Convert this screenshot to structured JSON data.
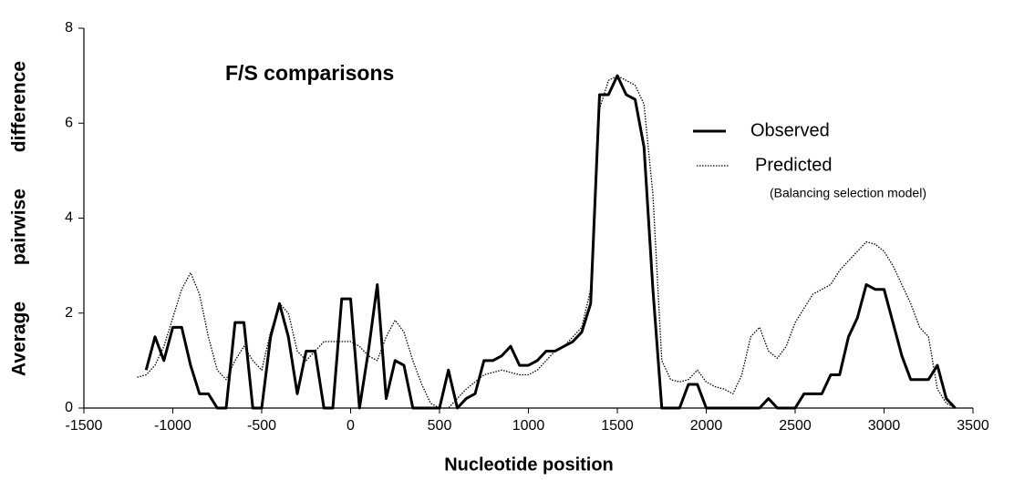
{
  "chart_data": {
    "type": "line",
    "title": "F/S comparisons",
    "x_label": "Nucleotide position",
    "y_label": "Average pairwise difference",
    "annotation": "(Balancing selection model)",
    "x": [
      -1200,
      -1150,
      -1100,
      -1050,
      -1000,
      -950,
      -900,
      -850,
      -800,
      -750,
      -700,
      -650,
      -600,
      -550,
      -500,
      -450,
      -400,
      -350,
      -300,
      -250,
      -200,
      -150,
      -100,
      -50,
      0,
      50,
      100,
      150,
      200,
      250,
      300,
      350,
      400,
      450,
      500,
      550,
      600,
      650,
      700,
      750,
      800,
      850,
      900,
      950,
      1000,
      1050,
      1100,
      1150,
      1200,
      1250,
      1300,
      1350,
      1400,
      1450,
      1500,
      1550,
      1600,
      1650,
      1700,
      1750,
      1800,
      1850,
      1900,
      1950,
      2000,
      2050,
      2100,
      2150,
      2200,
      2250,
      2300,
      2350,
      2400,
      2450,
      2500,
      2550,
      2600,
      2650,
      2700,
      2750,
      2800,
      2850,
      2900,
      2950,
      3000,
      3050,
      3100,
      3150,
      3200,
      3250,
      3300,
      3350,
      3400
    ],
    "series": [
      {
        "name": "Observed",
        "color": "#000000",
        "style": "solid",
        "values": [
          null,
          0.8,
          1.5,
          1.0,
          1.7,
          1.7,
          0.9,
          0.3,
          0.3,
          0,
          0,
          1.8,
          1.8,
          0,
          0,
          1.5,
          2.2,
          1.5,
          0.3,
          1.2,
          1.2,
          0,
          0,
          2.3,
          2.3,
          0,
          1.2,
          2.6,
          0.2,
          1.0,
          0.9,
          0,
          0,
          0,
          0,
          0.8,
          0,
          0.2,
          0.3,
          1.0,
          1.0,
          1.1,
          1.3,
          0.9,
          0.9,
          1.0,
          1.2,
          1.2,
          1.3,
          1.4,
          1.6,
          2.2,
          6.6,
          6.6,
          7.0,
          6.6,
          6.5,
          5.5,
          2.5,
          0,
          0,
          0,
          0.5,
          0.5,
          0,
          0,
          0,
          0,
          0,
          0,
          0,
          0.2,
          0,
          0,
          0,
          0.3,
          0.3,
          0.3,
          0.7,
          0.7,
          1.5,
          1.9,
          2.6,
          2.5,
          2.5,
          1.8,
          1.1,
          0.6,
          0.6,
          0.6,
          0.9,
          0.2,
          0
        ]
      },
      {
        "name": "Predicted",
        "color": "#000000",
        "style": "dotted",
        "values": [
          0.65,
          0.7,
          0.9,
          1.3,
          1.9,
          2.5,
          2.85,
          2.4,
          1.5,
          0.8,
          0.6,
          1.0,
          1.3,
          1.0,
          0.8,
          1.6,
          2.2,
          2.0,
          1.2,
          1.0,
          1.2,
          1.4,
          1.4,
          1.4,
          1.4,
          1.3,
          1.1,
          1.0,
          1.5,
          1.85,
          1.6,
          1.0,
          0.5,
          0.1,
          0,
          0,
          0.2,
          0.4,
          0.55,
          0.7,
          0.75,
          0.8,
          0.75,
          0.7,
          0.7,
          0.8,
          1.0,
          1.2,
          1.3,
          1.5,
          1.7,
          2.5,
          6.3,
          6.9,
          7.0,
          6.9,
          6.8,
          6.4,
          4.5,
          1.0,
          0.6,
          0.55,
          0.6,
          0.8,
          0.55,
          0.45,
          0.4,
          0.3,
          0.7,
          1.5,
          1.7,
          1.2,
          1.05,
          1.3,
          1.8,
          2.1,
          2.4,
          2.5,
          2.6,
          2.9,
          3.1,
          3.3,
          3.5,
          3.45,
          3.3,
          3.0,
          2.6,
          2.2,
          1.7,
          1.5,
          0.4,
          0.1,
          0
        ]
      }
    ],
    "xlim": [
      -1500,
      3500
    ],
    "xticks": [
      -1500,
      -1000,
      -500,
      0,
      500,
      1000,
      1500,
      2000,
      2500,
      3000,
      3500
    ],
    "ylim": [
      0,
      8
    ],
    "yticks": [
      0,
      2,
      4,
      6,
      8
    ],
    "grid": false
  }
}
